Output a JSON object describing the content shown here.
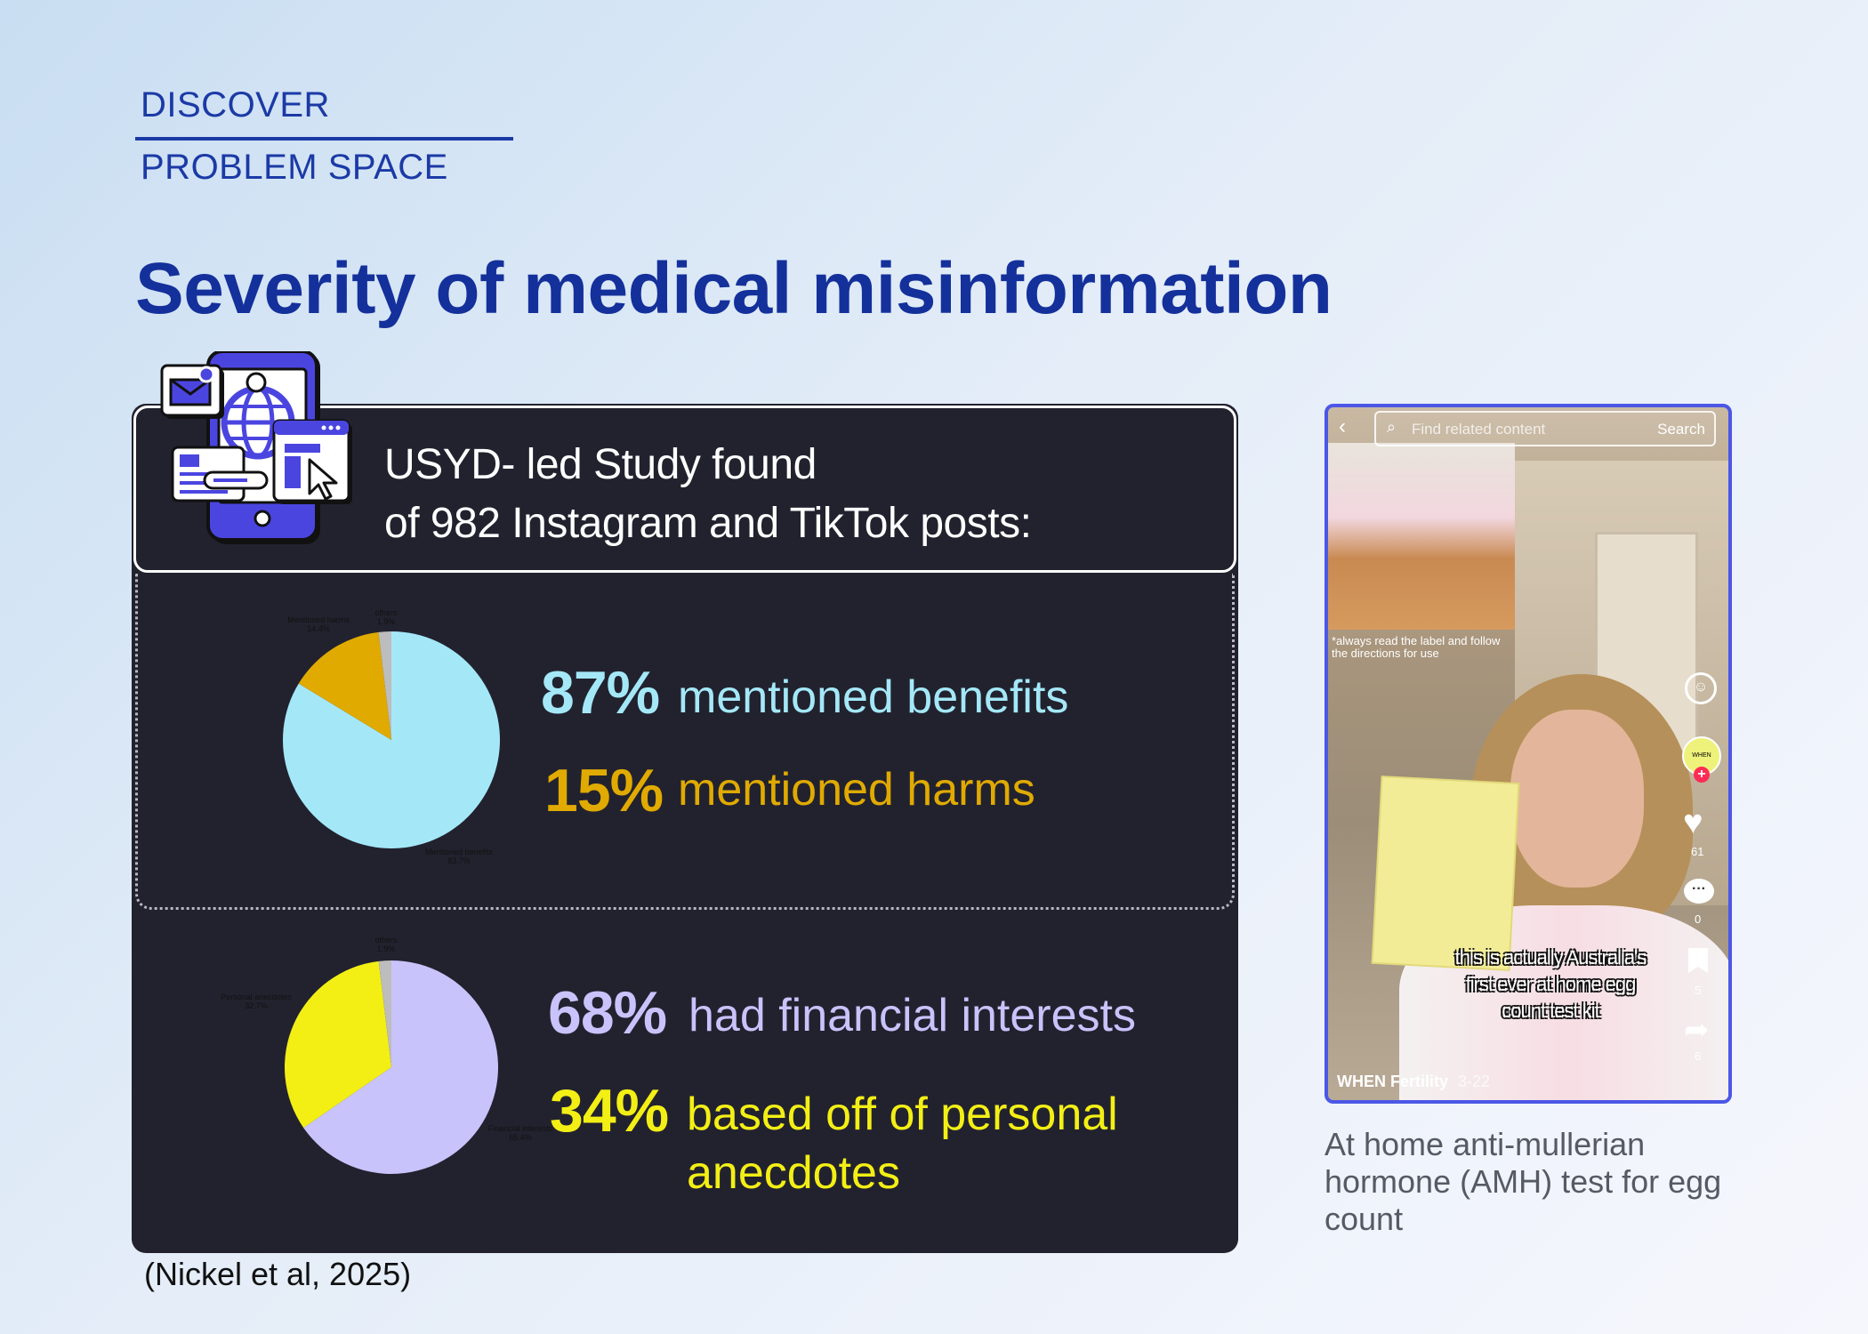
{
  "nav": {
    "section": "DISCOVER",
    "subsection": "PROBLEM SPACE"
  },
  "title": "Severity of medical misinformation",
  "study": {
    "line1": "USYD- led Study found",
    "line2": "of 982 Instagram and TikTok posts:"
  },
  "colors": {
    "benefits": "#a4e8f8",
    "harms": "#e0aa00",
    "financial": "#c8c3fb",
    "anecdotes": "#f3ef15",
    "others": "#bdbdbd",
    "accent": "#1b3aa6"
  },
  "chart_data": [
    {
      "type": "pie",
      "title": "",
      "slices": [
        {
          "label": "Mentioned benefits",
          "value": 83.7,
          "display": "83.7%"
        },
        {
          "label": "Mentioned harms",
          "value": 14.4,
          "display": "14.4%"
        },
        {
          "label": "others",
          "value": 1.9,
          "display": "1.9%"
        }
      ]
    },
    {
      "type": "pie",
      "title": "",
      "slices": [
        {
          "label": "Financial interests",
          "value": 65.4,
          "display": "65.4%"
        },
        {
          "label": "Personal anecdotes",
          "value": 32.7,
          "display": "32.7%"
        },
        {
          "label": "others",
          "value": 1.9,
          "display": "1.9%"
        }
      ]
    }
  ],
  "stats": [
    {
      "pct": "87%",
      "label": "mentioned benefits"
    },
    {
      "pct": "15%",
      "label": "mentioned harms"
    },
    {
      "pct": "68%",
      "label": "had financial interests"
    },
    {
      "pct": "34%",
      "label_line1": "based off of personal",
      "label_line2": "anecdotes"
    }
  ],
  "citation": "(Nickel et al, 2025)",
  "video": {
    "search_placeholder": "Find related content",
    "search_button": "Search",
    "inset_caption": "*always read the label and follow the directions for use",
    "badge": "WHEN",
    "likes": "61",
    "comments": "0",
    "saves": "5",
    "shares": "6",
    "subtitle_lines": [
      "this is actually Australia's",
      "first ever at home egg",
      "count test kit"
    ],
    "account": "WHEN Fertility",
    "date": "3-22"
  },
  "caption": "At home anti-mullerian hormone (AMH) test for egg count"
}
